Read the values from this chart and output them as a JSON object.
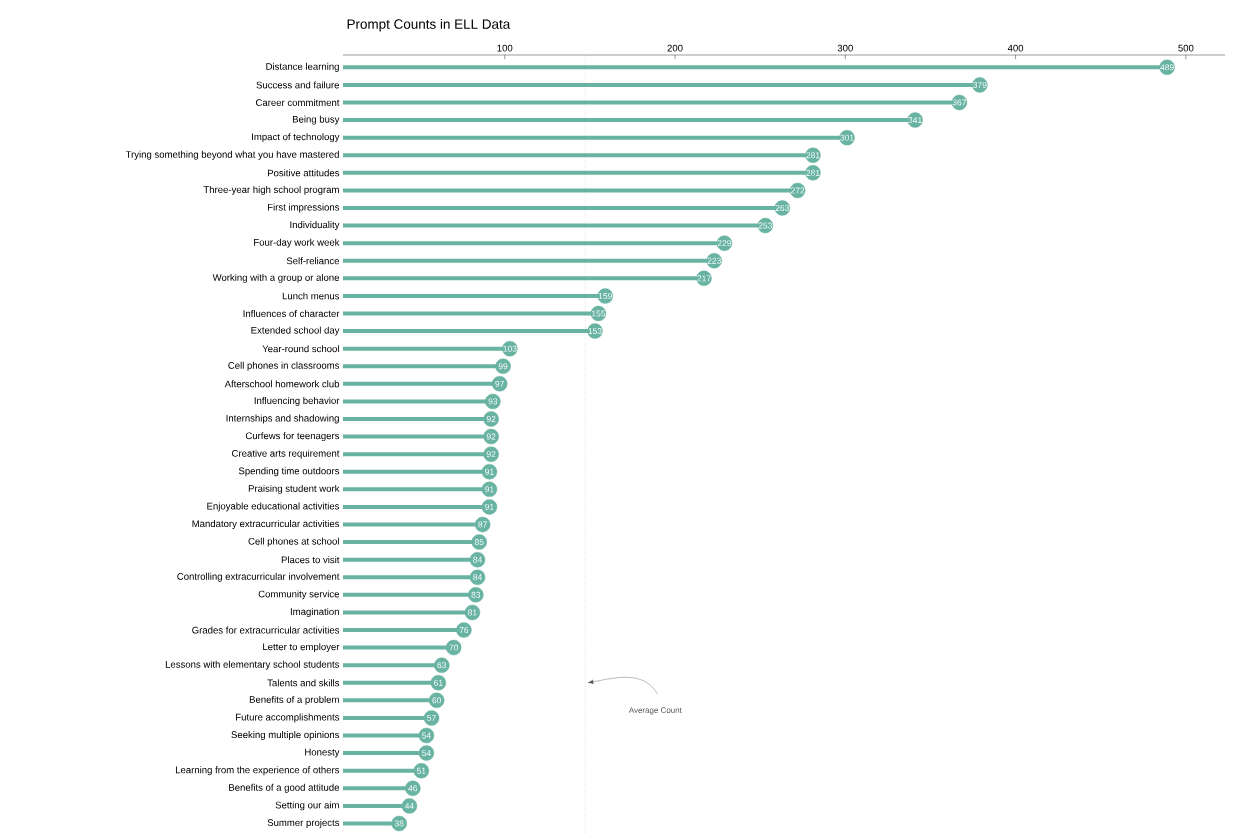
{
  "chart_data": {
    "type": "lollipop",
    "orientation": "horizontal",
    "title": "Prompt Counts in ELL Data",
    "categories": [
      "Distance learning",
      "Success and failure",
      "Career commitment",
      "Being busy",
      "Impact of technology",
      "Trying something beyond what you have mastered",
      "Positive attitudes",
      "Three-year high school program",
      "First impressions",
      "Individuality",
      "Four-day work week",
      "Self-reliance",
      "Working with a group or alone",
      "Lunch menus",
      "Influences of character",
      "Extended school day",
      "Year-round school",
      "Cell phones in classrooms",
      "Afterschool homework club",
      "Influencing behavior",
      "Internships and shadowing",
      "Curfews for teenagers",
      "Creative arts requirement",
      "Spending time outdoors",
      "Praising student work",
      "Enjoyable educational activities",
      "Mandatory extracurricular activities",
      "Cell phones at school",
      "Places to visit",
      "Controlling extracurricular involvement",
      "Community service",
      "Imagination",
      "Grades for extracurricular activities",
      "Letter to employer",
      "Lessons with elementary school students",
      "Talents and skills",
      "Benefits of a problem",
      "Future accomplishments",
      "Seeking multiple opinions",
      "Honesty",
      "Learning from the experience of others",
      "Benefits of a good attitude",
      "Setting our aim",
      "Summer projects"
    ],
    "values": [
      489,
      379,
      367,
      341,
      301,
      281,
      281,
      272,
      263,
      253,
      229,
      223,
      217,
      159,
      155,
      153,
      103,
      99,
      97,
      93,
      92,
      92,
      92,
      91,
      91,
      91,
      87,
      85,
      84,
      84,
      83,
      81,
      76,
      70,
      63,
      61,
      60,
      57,
      54,
      54,
      51,
      46,
      44,
      38
    ],
    "color": "#69b3a2",
    "data_labels": true,
    "marker": "circle",
    "grid": false,
    "xlim": [
      5,
      523
    ],
    "xticks": [
      100,
      200,
      300,
      400,
      500
    ],
    "ref_lines": [
      {
        "axis": "x",
        "value": 147.3,
        "label": "Average Count",
        "line_style": "dotted",
        "color": "#555555"
      }
    ]
  }
}
